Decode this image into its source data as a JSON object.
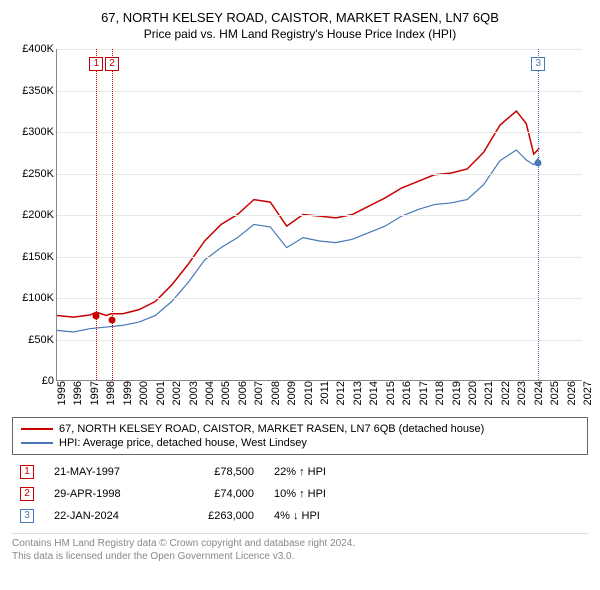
{
  "title": "67, NORTH KELSEY ROAD, CAISTOR, MARKET RASEN, LN7 6QB",
  "subtitle": "Price paid vs. HM Land Registry's House Price Index (HPI)",
  "chart": {
    "type": "line",
    "xlim": [
      1995,
      2027
    ],
    "ylim": [
      0,
      400000
    ],
    "ytick_step": 50000,
    "yticks": [
      "£0",
      "£50K",
      "£100K",
      "£150K",
      "£200K",
      "£250K",
      "£300K",
      "£350K",
      "£400K"
    ],
    "xticks": [
      1995,
      1996,
      1997,
      1998,
      1999,
      2000,
      2001,
      2002,
      2003,
      2004,
      2005,
      2006,
      2007,
      2008,
      2009,
      2010,
      2011,
      2012,
      2013,
      2014,
      2015,
      2016,
      2017,
      2018,
      2019,
      2020,
      2021,
      2022,
      2023,
      2024,
      2025,
      2026,
      2027
    ],
    "background_color": "#ffffff",
    "grid_color": "#e8e8e8",
    "series": [
      {
        "name": "property",
        "label": "67, NORTH KELSEY ROAD, CAISTOR, MARKET RASEN, LN7 6QB (detached house)",
        "color": "#c70000",
        "line_width": 1.5,
        "data": [
          [
            1995,
            78000
          ],
          [
            1996,
            76000
          ],
          [
            1997,
            78500
          ],
          [
            1997.4,
            82000
          ],
          [
            1998,
            78000
          ],
          [
            1998.3,
            80000
          ],
          [
            1999,
            80000
          ],
          [
            2000,
            85000
          ],
          [
            2001,
            95000
          ],
          [
            2002,
            115000
          ],
          [
            2003,
            140000
          ],
          [
            2004,
            168000
          ],
          [
            2005,
            188000
          ],
          [
            2006,
            200000
          ],
          [
            2007,
            218000
          ],
          [
            2008,
            215000
          ],
          [
            2009,
            186000
          ],
          [
            2010,
            200000
          ],
          [
            2011,
            198000
          ],
          [
            2012,
            196000
          ],
          [
            2013,
            200000
          ],
          [
            2014,
            210000
          ],
          [
            2015,
            220000
          ],
          [
            2016,
            232000
          ],
          [
            2017,
            240000
          ],
          [
            2018,
            248000
          ],
          [
            2019,
            250000
          ],
          [
            2020,
            255000
          ],
          [
            2021,
            275000
          ],
          [
            2022,
            308000
          ],
          [
            2023,
            325000
          ],
          [
            2023.6,
            310000
          ],
          [
            2024.06,
            273000
          ],
          [
            2024.4,
            280000
          ]
        ]
      },
      {
        "name": "hpi",
        "label": "HPI: Average price, detached house, West Lindsey",
        "color": "#4878b8",
        "line_width": 1.2,
        "data": [
          [
            1995,
            60000
          ],
          [
            1996,
            58000
          ],
          [
            1997,
            62000
          ],
          [
            1998,
            64000
          ],
          [
            1999,
            66000
          ],
          [
            2000,
            70000
          ],
          [
            2001,
            78000
          ],
          [
            2002,
            95000
          ],
          [
            2003,
            118000
          ],
          [
            2004,
            145000
          ],
          [
            2005,
            160000
          ],
          [
            2006,
            172000
          ],
          [
            2007,
            188000
          ],
          [
            2008,
            185000
          ],
          [
            2009,
            160000
          ],
          [
            2010,
            172000
          ],
          [
            2011,
            168000
          ],
          [
            2012,
            166000
          ],
          [
            2013,
            170000
          ],
          [
            2014,
            178000
          ],
          [
            2015,
            186000
          ],
          [
            2016,
            198000
          ],
          [
            2017,
            206000
          ],
          [
            2018,
            212000
          ],
          [
            2019,
            214000
          ],
          [
            2020,
            218000
          ],
          [
            2021,
            236000
          ],
          [
            2022,
            265000
          ],
          [
            2023,
            278000
          ],
          [
            2023.6,
            266000
          ],
          [
            2024.06,
            260000
          ],
          [
            2024.4,
            270000
          ]
        ]
      }
    ],
    "markers": [
      {
        "id": "1",
        "x": 1997.38,
        "color": "#c70000",
        "point_y": 78500,
        "point_color": "#c70000"
      },
      {
        "id": "2",
        "x": 1998.32,
        "color": "#c70000",
        "point_y": 74000,
        "point_color": "#c70000"
      },
      {
        "id": "3",
        "x": 2024.06,
        "color": "#4878b8",
        "point_y": 263000,
        "point_color": "#4878b8"
      }
    ]
  },
  "legend": {
    "items": [
      {
        "color": "#c70000",
        "label": "67, NORTH KELSEY ROAD, CAISTOR, MARKET RASEN, LN7 6QB (detached house)"
      },
      {
        "color": "#4878b8",
        "label": "HPI: Average price, detached house, West Lindsey"
      }
    ]
  },
  "events": [
    {
      "id": "1",
      "color": "#c70000",
      "date": "21-MAY-1997",
      "price": "£78,500",
      "delta": "22% ↑ HPI"
    },
    {
      "id": "2",
      "color": "#c70000",
      "date": "29-APR-1998",
      "price": "£74,000",
      "delta": "10% ↑ HPI"
    },
    {
      "id": "3",
      "color": "#4878b8",
      "date": "22-JAN-2024",
      "price": "£263,000",
      "delta": "4% ↓ HPI"
    }
  ],
  "footnote1": "Contains HM Land Registry data © Crown copyright and database right 2024.",
  "footnote2": "This data is licensed under the Open Government Licence v3.0."
}
